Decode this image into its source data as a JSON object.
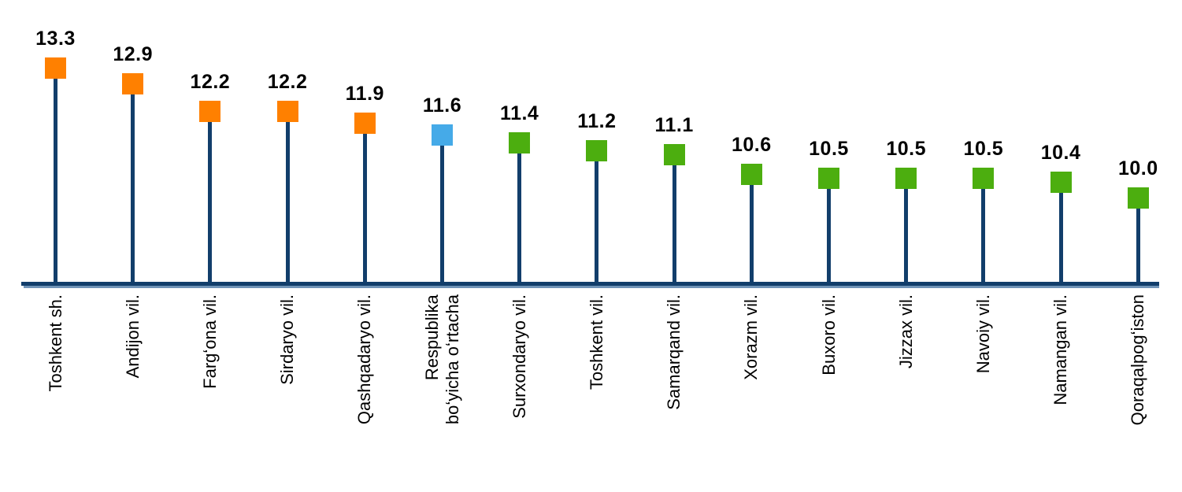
{
  "page": {
    "background": "#ffffff"
  },
  "colors": {
    "axis": "#123E6B",
    "stem": "#123E6B",
    "axis_shadow": "#6F93B7",
    "value_text": "#000000",
    "category_text": "#000000",
    "marker_above_average": "#FF8000",
    "marker_average": "#45AAE8",
    "marker_below_average": "#4CAE0F"
  },
  "chart_data": {
    "type": "bar",
    "variant": "lollipop",
    "orientation": "vertical",
    "title": "",
    "xlabel": "",
    "ylabel": "",
    "grid": false,
    "legend": false,
    "ylim": [
      7.9,
      13.5
    ],
    "baseline_value": 7.9,
    "categories": [
      "Toshkent sh.",
      "Andijon vil.",
      "Fargʻona vil.",
      "Sirdaryo vil.",
      "Qashqadaryo vil.",
      "Respublika\nboʻyicha oʻrtacha",
      "Surxondaryo vil.",
      "Toshkent vil.",
      "Samarqand vil.",
      "Xorazm vil.",
      "Buxoro vil.",
      "Jizzax vil.",
      "Navoiy vil.",
      "Namangan vil.",
      "Qoraqalpogʻiston"
    ],
    "values": [
      13.3,
      12.9,
      12.2,
      12.2,
      11.9,
      11.6,
      11.4,
      11.2,
      11.1,
      10.6,
      10.5,
      10.5,
      10.5,
      10.4,
      10.0
    ],
    "value_labels": [
      "13.3",
      "12.9",
      "12.2",
      "12.2",
      "11.9",
      "11.6",
      "11.4",
      "11.2",
      "11.1",
      "10.6",
      "10.5",
      "10.5",
      "10.5",
      "10.4",
      "10.0"
    ],
    "point_colors": [
      "#FF8000",
      "#FF8000",
      "#FF8000",
      "#FF8000",
      "#FF8000",
      "#45AAE8",
      "#4CAE0F",
      "#4CAE0F",
      "#4CAE0F",
      "#4CAE0F",
      "#4CAE0F",
      "#4CAE0F",
      "#4CAE0F",
      "#4CAE0F",
      "#4CAE0F"
    ]
  }
}
